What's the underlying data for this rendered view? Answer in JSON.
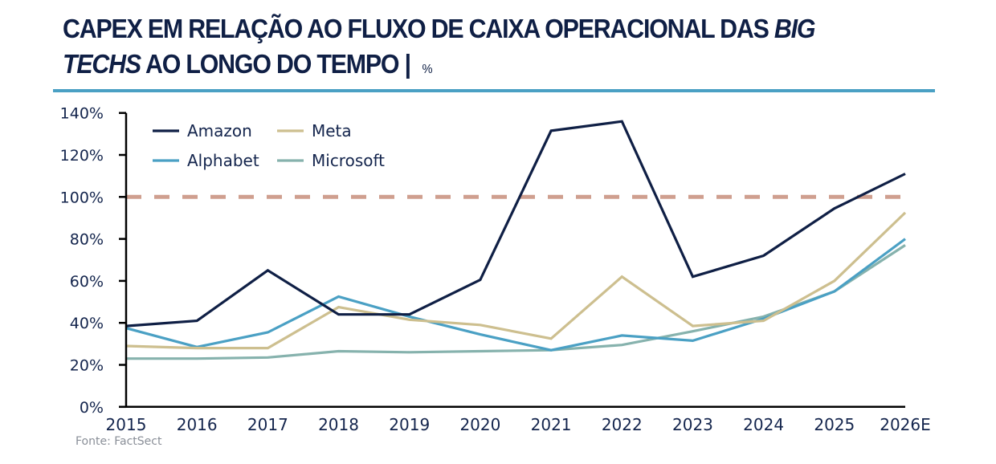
{
  "header": {
    "title_part1": "CAPEX EM RELAÇÃO AO FLUXO DE CAIXA OPERACIONAL DAS ",
    "title_italic1": "BIG",
    "title_italic2": "TECHS",
    "title_part2": " AO LONGO DO TEMPO | ",
    "title_unit": "%",
    "rule_color": "#4aa0c4"
  },
  "footer": {
    "source": "Fonte: FactSect"
  },
  "chart_data": {
    "type": "line",
    "title": "CAPEX EM RELAÇÃO AO FLUXO DE CAIXA OPERACIONAL DAS BIG TECHS AO LONGO DO TEMPO | %",
    "xlabel": "",
    "ylabel": "",
    "x": [
      "2015",
      "2016",
      "2017",
      "2018",
      "2019",
      "2020",
      "2021",
      "2022",
      "2023",
      "2024",
      "2025",
      "2026E"
    ],
    "ylim": [
      0,
      140
    ],
    "yticks": [
      0,
      20,
      40,
      60,
      80,
      100,
      120,
      140
    ],
    "ytick_labels": [
      "0%",
      "20%",
      "40%",
      "60%",
      "80%",
      "100%",
      "120%",
      "140%"
    ],
    "grid": false,
    "legend_position": "top-left",
    "series": [
      {
        "name": "Amazon",
        "color": "#0f1f45",
        "values": [
          38.5,
          41,
          65,
          44,
          44,
          60.5,
          131.5,
          136,
          62,
          72,
          94.5,
          111
        ]
      },
      {
        "name": "Meta",
        "color": "#cdbf8f",
        "values": [
          29,
          28,
          28,
          47.5,
          41.5,
          39,
          32.5,
          62,
          38.5,
          41,
          60,
          92.5
        ]
      },
      {
        "name": "Alphabet",
        "color": "#4aa0c4",
        "values": [
          37.5,
          28.5,
          35.5,
          52.5,
          43,
          34.5,
          27,
          34,
          31.5,
          42,
          55,
          80
        ]
      },
      {
        "name": "Microsoft",
        "color": "#86b2ad",
        "values": [
          23,
          23,
          23.5,
          26.5,
          26,
          26.5,
          27,
          29.5,
          36,
          43,
          55,
          77
        ]
      }
    ],
    "reference_lines": [
      {
        "value": 100,
        "style": "dashed",
        "color": "#cf9f8f"
      }
    ]
  }
}
